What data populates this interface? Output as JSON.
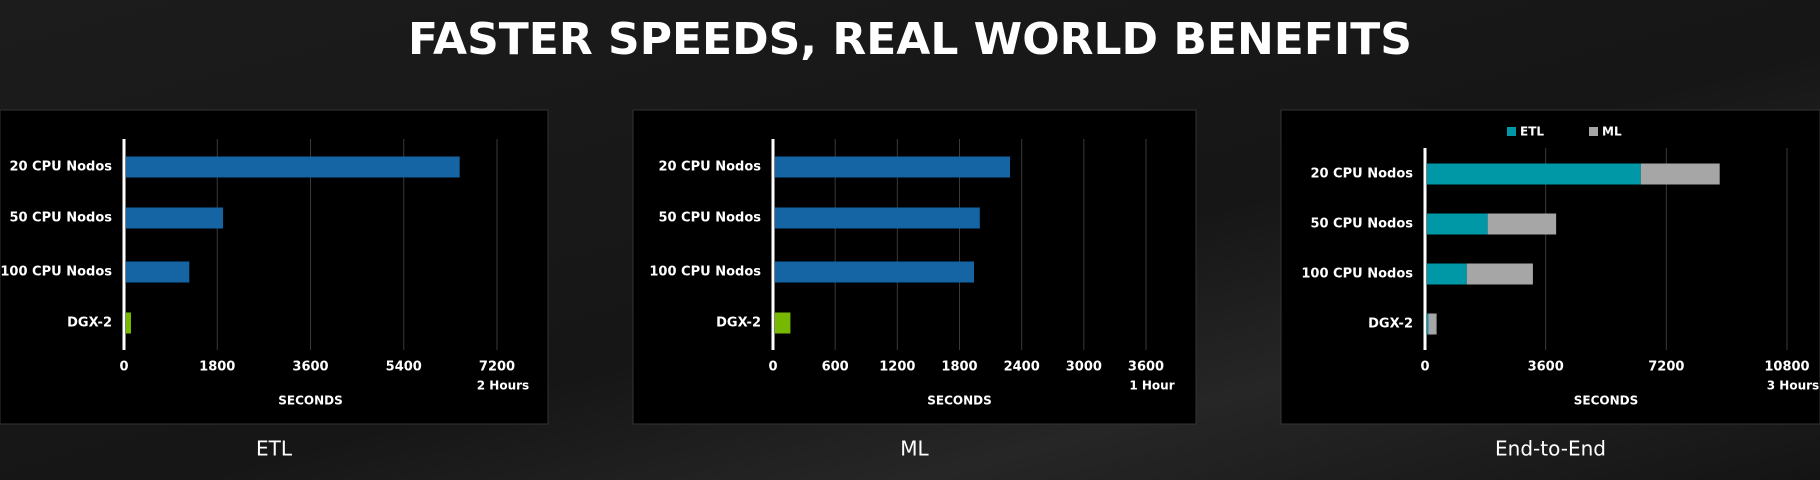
{
  "title": "FASTER SPEEDS, REAL WORLD BENEFITS",
  "chart_data": [
    {
      "type": "bar",
      "orientation": "horizontal",
      "title": "ETL",
      "x_label": "SECONDS",
      "annotation": "2 Hours",
      "categories": [
        "20 CPU Nodos",
        "50 CPU Nodos",
        "100 CPU Nodos",
        "DGX-2"
      ],
      "values": [
        6480,
        1912,
        1260,
        135
      ],
      "colors": [
        "#1565a5",
        "#1565a5",
        "#1565a5",
        "#76b900"
      ],
      "xlim": [
        0,
        7200
      ],
      "xticks": [
        0,
        1800,
        3600,
        5400,
        7200
      ],
      "grid": true
    },
    {
      "type": "bar",
      "orientation": "horizontal",
      "title": "ML",
      "x_label": "SECONDS",
      "annotation": "1 Hour",
      "categories": [
        "20 CPU Nodos",
        "50 CPU Nodos",
        "100 CPU Nodos",
        "DGX-2"
      ],
      "values": [
        2288,
        1996,
        1940,
        168
      ],
      "colors": [
        "#1565a5",
        "#1565a5",
        "#1565a5",
        "#76b900"
      ],
      "xlim": [
        0,
        3600
      ],
      "xticks": [
        0,
        600,
        1200,
        1800,
        2400,
        3000,
        3600
      ],
      "grid": true
    },
    {
      "type": "stacked_bar",
      "orientation": "horizontal",
      "title": "End-to-End",
      "x_label": "SECONDS",
      "annotation": "3 Hours",
      "categories": [
        "20 CPU Nodos",
        "50 CPU Nodos",
        "100 CPU Nodos",
        "DGX-2"
      ],
      "series": [
        {
          "name": "ETL",
          "color": "#0097a7",
          "values": [
            6438,
            1869,
            1246,
            104
          ]
        },
        {
          "name": "ML",
          "color": "#a6a6a6",
          "values": [
            2354,
            2043,
            1973,
            242
          ]
        }
      ],
      "xlim": [
        0,
        10800
      ],
      "xticks": [
        0,
        3600,
        7200,
        10800
      ],
      "grid": true,
      "legend": "top"
    }
  ]
}
